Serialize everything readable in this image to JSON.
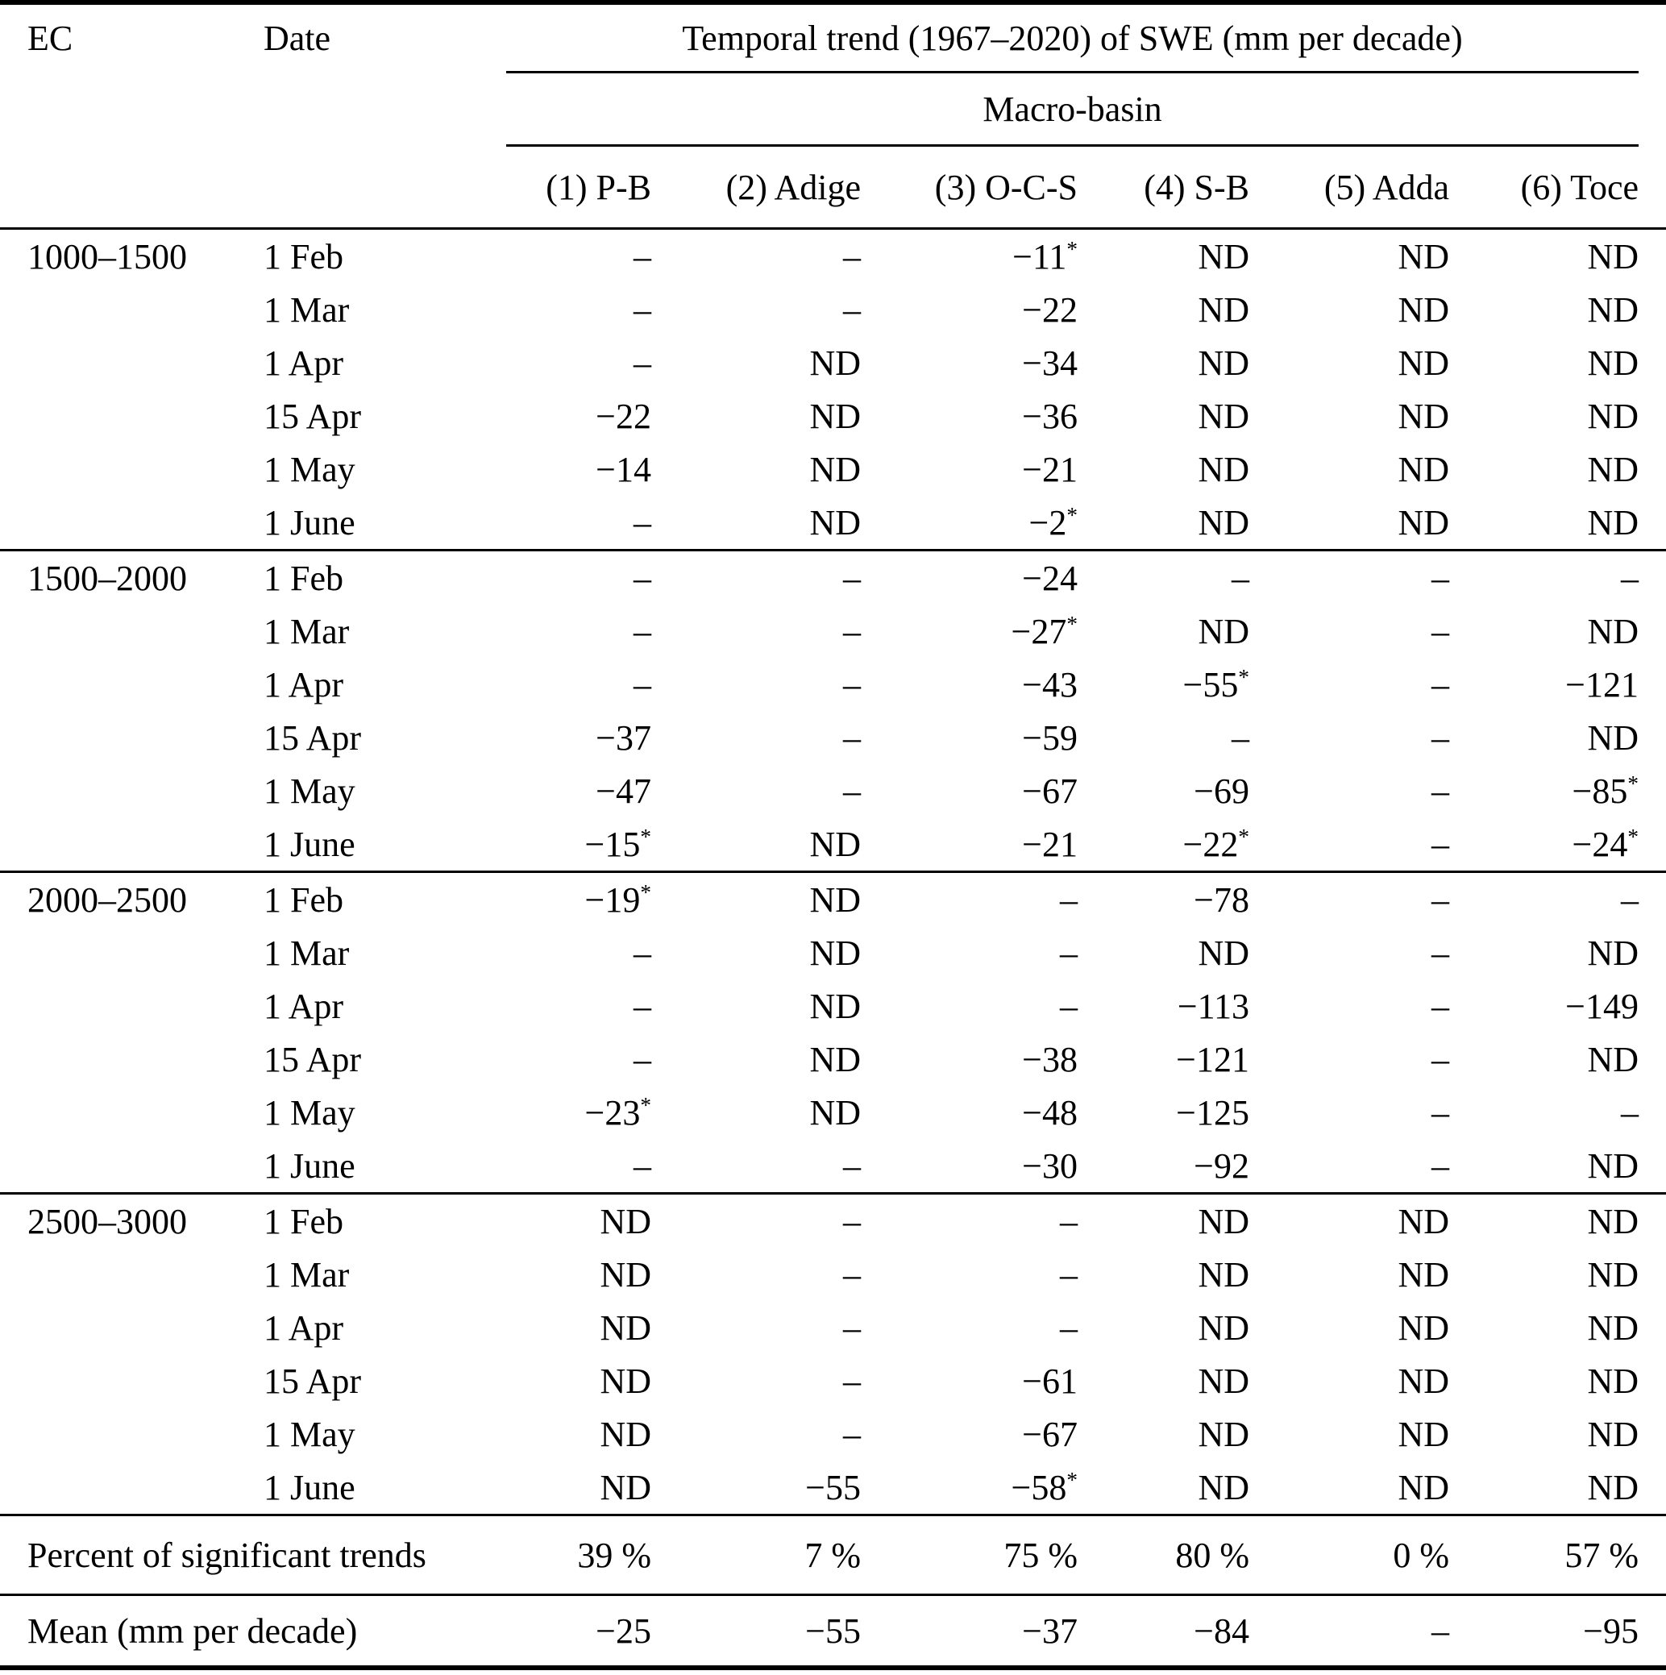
{
  "table": {
    "header": {
      "ec": "EC",
      "date": "Date",
      "trend_title": "Temporal trend (1967–2020) of SWE (mm per decade)",
      "group_title": "Macro-basin",
      "columns": [
        "(1) P-B",
        "(2) Adige",
        "(3) O-C-S",
        "(4) S-B",
        "(5) Adda",
        "(6) Toce"
      ]
    },
    "blocks": [
      {
        "ec": "1000–1500",
        "rows": [
          {
            "date": "1 Feb",
            "values": [
              "–",
              "–",
              "−11*",
              "ND",
              "ND",
              "ND"
            ]
          },
          {
            "date": "1 Mar",
            "values": [
              "–",
              "–",
              "−22",
              "ND",
              "ND",
              "ND"
            ]
          },
          {
            "date": "1 Apr",
            "values": [
              "–",
              "ND",
              "−34",
              "ND",
              "ND",
              "ND"
            ]
          },
          {
            "date": "15 Apr",
            "values": [
              "−22",
              "ND",
              "−36",
              "ND",
              "ND",
              "ND"
            ]
          },
          {
            "date": "1 May",
            "values": [
              "−14",
              "ND",
              "−21",
              "ND",
              "ND",
              "ND"
            ]
          },
          {
            "date": "1 June",
            "values": [
              "–",
              "ND",
              "−2*",
              "ND",
              "ND",
              "ND"
            ]
          }
        ]
      },
      {
        "ec": "1500–2000",
        "rows": [
          {
            "date": "1 Feb",
            "values": [
              "–",
              "–",
              "−24",
              "–",
              "–",
              "–"
            ]
          },
          {
            "date": "1 Mar",
            "values": [
              "–",
              "–",
              "−27*",
              "ND",
              "–",
              "ND"
            ]
          },
          {
            "date": "1 Apr",
            "values": [
              "–",
              "–",
              "−43",
              "−55*",
              "–",
              "−121"
            ]
          },
          {
            "date": "15 Apr",
            "values": [
              "−37",
              "–",
              "−59",
              "–",
              "–",
              "ND"
            ]
          },
          {
            "date": "1 May",
            "values": [
              "−47",
              "–",
              "−67",
              "−69",
              "–",
              "−85*"
            ]
          },
          {
            "date": "1 June",
            "values": [
              "−15*",
              "ND",
              "−21",
              "−22*",
              "–",
              "−24*"
            ]
          }
        ]
      },
      {
        "ec": "2000–2500",
        "rows": [
          {
            "date": "1 Feb",
            "values": [
              "−19*",
              "ND",
              "–",
              "−78",
              "–",
              "–"
            ]
          },
          {
            "date": "1 Mar",
            "values": [
              "–",
              "ND",
              "–",
              "ND",
              "–",
              "ND"
            ]
          },
          {
            "date": "1 Apr",
            "values": [
              "–",
              "ND",
              "–",
              "−113",
              "–",
              "−149"
            ]
          },
          {
            "date": "15 Apr",
            "values": [
              "–",
              "ND",
              "−38",
              "−121",
              "–",
              "ND"
            ]
          },
          {
            "date": "1 May",
            "values": [
              "−23*",
              "ND",
              "−48",
              "−125",
              "–",
              "–"
            ]
          },
          {
            "date": "1 June",
            "values": [
              "–",
              "–",
              "−30",
              "−92",
              "–",
              "ND"
            ]
          }
        ]
      },
      {
        "ec": "2500–3000",
        "rows": [
          {
            "date": "1 Feb",
            "values": [
              "ND",
              "–",
              "–",
              "ND",
              "ND",
              "ND"
            ]
          },
          {
            "date": "1 Mar",
            "values": [
              "ND",
              "–",
              "–",
              "ND",
              "ND",
              "ND"
            ]
          },
          {
            "date": "1 Apr",
            "values": [
              "ND",
              "–",
              "–",
              "ND",
              "ND",
              "ND"
            ]
          },
          {
            "date": "15 Apr",
            "values": [
              "ND",
              "–",
              "−61",
              "ND",
              "ND",
              "ND"
            ]
          },
          {
            "date": "1 May",
            "values": [
              "ND",
              "–",
              "−67",
              "ND",
              "ND",
              "ND"
            ]
          },
          {
            "date": "1 June",
            "values": [
              "ND",
              "−55",
              "−58*",
              "ND",
              "ND",
              "ND"
            ]
          }
        ]
      }
    ],
    "percent_row": {
      "label": "Percent of significant trends",
      "values": [
        "39 %",
        "7 %",
        "75 %",
        "80 %",
        "0 %",
        "57 %"
      ]
    },
    "mean_row": {
      "label": "Mean (mm per decade)",
      "values": [
        "−25",
        "−55",
        "−37",
        "−84",
        "–",
        "−95"
      ]
    }
  }
}
